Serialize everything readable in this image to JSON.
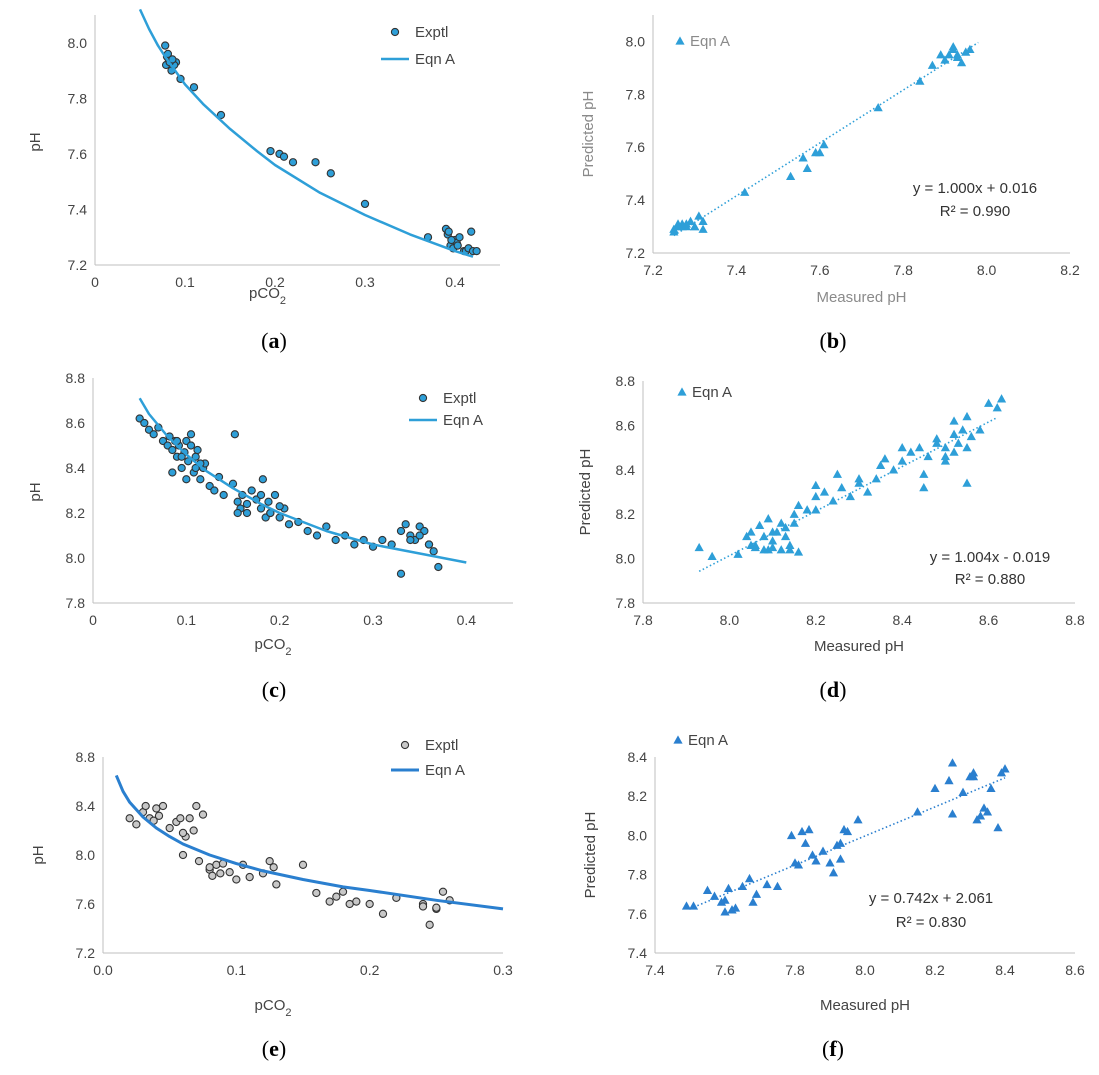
{
  "panel_labels": [
    "(a)",
    "(b)",
    "(c)",
    "(d)",
    "(e)",
    "(f)"
  ],
  "panel_letters": [
    "a",
    "b",
    "c",
    "d",
    "e",
    "f"
  ],
  "colors": {
    "light_blue": "#2e9fd8",
    "mid_blue": "#2a7fcf",
    "gray_point": "#c8c8c8",
    "dark_stroke": "#333333"
  },
  "chart_data": [
    {
      "panel": "a",
      "type": "scatter",
      "xlabel": "pCO2",
      "ylabel": "pH",
      "xlim": [
        0,
        0.45
      ],
      "ylim": [
        7.2,
        8.1
      ],
      "xticks": [
        "0",
        "0.1",
        "0.2",
        "0.3",
        "0.4"
      ],
      "yticks": [
        "7.2",
        "7.4",
        "7.6",
        "7.8",
        "8.0"
      ],
      "legend": [
        "Exptl",
        "Eqn A"
      ],
      "legend_position": "top-right",
      "series": [
        {
          "name": "Exptl",
          "x": [
            0.078,
            0.08,
            0.082,
            0.079,
            0.085,
            0.09,
            0.081,
            0.088,
            0.083,
            0.086,
            0.095,
            0.11,
            0.14,
            0.195,
            0.205,
            0.21,
            0.22,
            0.245,
            0.262,
            0.3,
            0.37,
            0.39,
            0.392,
            0.395,
            0.398,
            0.4,
            0.402,
            0.405,
            0.41,
            0.412,
            0.415,
            0.418,
            0.42,
            0.424,
            0.393,
            0.396,
            0.403
          ],
          "y": [
            7.99,
            7.95,
            7.94,
            7.92,
            7.9,
            7.93,
            7.96,
            7.92,
            7.93,
            7.94,
            7.87,
            7.84,
            7.74,
            7.61,
            7.6,
            7.59,
            7.57,
            7.57,
            7.53,
            7.42,
            7.3,
            7.33,
            7.31,
            7.27,
            7.26,
            7.29,
            7.28,
            7.3,
            7.25,
            7.25,
            7.26,
            7.32,
            7.25,
            7.25,
            7.32,
            7.29,
            7.27
          ]
        },
        {
          "name": "Eqn A",
          "x": [
            0.05,
            0.06,
            0.07,
            0.08,
            0.1,
            0.12,
            0.15,
            0.18,
            0.2,
            0.25,
            0.3,
            0.35,
            0.4,
            0.42
          ],
          "y": [
            8.12,
            8.05,
            7.99,
            7.94,
            7.85,
            7.78,
            7.69,
            7.61,
            7.56,
            7.46,
            7.38,
            7.31,
            7.25,
            7.23
          ]
        }
      ]
    },
    {
      "panel": "b",
      "type": "scatter",
      "xlabel": "Measured pH",
      "ylabel": "Predicted pH",
      "xlim": [
        7.2,
        8.2
      ],
      "ylim": [
        7.2,
        8.1
      ],
      "xticks": [
        "7.2",
        "7.4",
        "7.6",
        "7.8",
        "8.0",
        "8.2"
      ],
      "yticks": [
        "7.2",
        "7.4",
        "7.6",
        "7.8",
        "8.0"
      ],
      "legend": [
        "Eqn A"
      ],
      "legend_position": "top-left",
      "equation": "y = 1.000x + 0.016",
      "r_squared": "R² = 0.990",
      "trendline": {
        "slope": 1.0,
        "intercept": 0.016,
        "x_range": [
          7.25,
          7.98
        ]
      },
      "series": [
        {
          "name": "Eqn A",
          "x": [
            7.25,
            7.26,
            7.27,
            7.28,
            7.29,
            7.3,
            7.31,
            7.32,
            7.25,
            7.27,
            7.3,
            7.28,
            7.26,
            7.32,
            7.42,
            7.53,
            7.56,
            7.57,
            7.59,
            7.6,
            7.61,
            7.74,
            7.84,
            7.87,
            7.89,
            7.9,
            7.92,
            7.93,
            7.94,
            7.95,
            7.96,
            7.91,
            7.93,
            7.92
          ],
          "y": [
            7.28,
            7.3,
            7.31,
            7.3,
            7.32,
            7.3,
            7.34,
            7.29,
            7.29,
            7.3,
            7.3,
            7.31,
            7.31,
            7.32,
            7.43,
            7.49,
            7.56,
            7.52,
            7.58,
            7.58,
            7.61,
            7.75,
            7.85,
            7.91,
            7.95,
            7.93,
            7.97,
            7.95,
            7.92,
            7.96,
            7.97,
            7.95,
            7.94,
            7.98
          ]
        }
      ]
    },
    {
      "panel": "c",
      "type": "scatter",
      "xlabel": "pCO2",
      "ylabel": "pH",
      "xlim": [
        0,
        0.45
      ],
      "ylim": [
        7.8,
        8.8
      ],
      "xticks": [
        "0",
        "0.1",
        "0.2",
        "0.3",
        "0.4"
      ],
      "yticks": [
        "7.8",
        "8.0",
        "8.2",
        "8.4",
        "8.6",
        "8.8"
      ],
      "legend": [
        "Exptl",
        "Eqn A"
      ],
      "legend_position": "top-right",
      "series": [
        {
          "name": "Exptl",
          "x": [
            0.05,
            0.055,
            0.06,
            0.065,
            0.07,
            0.075,
            0.08,
            0.082,
            0.085,
            0.088,
            0.09,
            0.092,
            0.095,
            0.098,
            0.1,
            0.102,
            0.105,
            0.108,
            0.11,
            0.112,
            0.115,
            0.118,
            0.12,
            0.125,
            0.13,
            0.135,
            0.14,
            0.15,
            0.152,
            0.155,
            0.158,
            0.16,
            0.165,
            0.17,
            0.175,
            0.18,
            0.182,
            0.185,
            0.188,
            0.19,
            0.195,
            0.2,
            0.205,
            0.21,
            0.22,
            0.23,
            0.24,
            0.25,
            0.26,
            0.27,
            0.28,
            0.29,
            0.3,
            0.31,
            0.32,
            0.33,
            0.335,
            0.34,
            0.345,
            0.35,
            0.355,
            0.36,
            0.365,
            0.37,
            0.33,
            0.34,
            0.35,
            0.36,
            0.085,
            0.095,
            0.105,
            0.115,
            0.1,
            0.09,
            0.11,
            0.18,
            0.19,
            0.2,
            0.155,
            0.165
          ],
          "y": [
            8.62,
            8.6,
            8.57,
            8.55,
            8.58,
            8.52,
            8.5,
            8.54,
            8.48,
            8.52,
            8.45,
            8.5,
            8.4,
            8.47,
            8.52,
            8.43,
            8.5,
            8.38,
            8.45,
            8.48,
            8.35,
            8.4,
            8.42,
            8.32,
            8.3,
            8.36,
            8.28,
            8.33,
            8.55,
            8.25,
            8.22,
            8.28,
            8.2,
            8.3,
            8.26,
            8.22,
            8.35,
            8.18,
            8.25,
            8.2,
            8.28,
            8.18,
            8.22,
            8.15,
            8.16,
            8.12,
            8.1,
            8.14,
            8.08,
            8.1,
            8.06,
            8.08,
            8.05,
            8.08,
            8.06,
            8.12,
            8.15,
            8.1,
            8.08,
            8.14,
            8.12,
            8.06,
            8.03,
            7.96,
            7.93,
            8.08,
            8.1,
            8.06,
            8.38,
            8.45,
            8.55,
            8.42,
            8.35,
            8.52,
            8.4,
            8.28,
            8.2,
            8.23,
            8.2,
            8.24
          ]
        },
        {
          "name": "Eqn A",
          "x": [
            0.05,
            0.06,
            0.08,
            0.1,
            0.12,
            0.15,
            0.18,
            0.2,
            0.25,
            0.3,
            0.35,
            0.4
          ],
          "y": [
            8.71,
            8.64,
            8.54,
            8.46,
            8.39,
            8.31,
            8.24,
            8.2,
            8.12,
            8.06,
            8.02,
            7.98
          ]
        }
      ]
    },
    {
      "panel": "d",
      "type": "scatter",
      "xlabel": "Measured pH",
      "ylabel": "Predicted pH",
      "xlim": [
        7.8,
        8.8
      ],
      "ylim": [
        7.8,
        8.8
      ],
      "xticks": [
        "7.8",
        "8.0",
        "8.2",
        "8.4",
        "8.6",
        "8.8"
      ],
      "yticks": [
        "7.8",
        "8.0",
        "8.2",
        "8.4",
        "8.6",
        "8.8"
      ],
      "legend": [
        "Eqn A"
      ],
      "legend_position": "top-left",
      "equation": "y = 1.004x - 0.019",
      "r_squared": "R² = 0.880",
      "trendline": {
        "slope": 1.004,
        "intercept": -0.019,
        "x_range": [
          7.93,
          8.62
        ]
      },
      "series": [
        {
          "name": "Eqn A",
          "x": [
            7.93,
            7.96,
            8.02,
            8.04,
            8.05,
            8.06,
            8.07,
            8.08,
            8.09,
            8.1,
            8.11,
            8.12,
            8.13,
            8.14,
            8.15,
            8.16,
            8.05,
            8.08,
            8.1,
            8.12,
            8.14,
            8.16,
            8.18,
            8.2,
            8.22,
            8.24,
            8.26,
            8.28,
            8.3,
            8.32,
            8.34,
            8.36,
            8.38,
            8.4,
            8.42,
            8.44,
            8.45,
            8.46,
            8.48,
            8.5,
            8.5,
            8.52,
            8.52,
            8.53,
            8.54,
            8.55,
            8.55,
            8.56,
            8.58,
            8.6,
            8.62,
            8.63,
            8.2,
            8.25,
            8.3,
            8.35,
            8.4,
            8.45,
            8.5,
            8.55,
            8.1,
            8.15,
            8.2,
            8.48,
            8.52,
            8.06,
            8.09,
            8.13
          ],
          "y": [
            8.05,
            8.01,
            8.02,
            8.1,
            8.12,
            8.06,
            8.15,
            8.04,
            8.18,
            8.08,
            8.12,
            8.04,
            8.14,
            8.06,
            8.2,
            8.03,
            8.06,
            8.1,
            8.05,
            8.16,
            8.04,
            8.24,
            8.22,
            8.28,
            8.3,
            8.26,
            8.32,
            8.28,
            8.34,
            8.3,
            8.36,
            8.45,
            8.4,
            8.44,
            8.48,
            8.5,
            8.38,
            8.46,
            8.52,
            8.5,
            8.44,
            8.56,
            8.48,
            8.52,
            8.58,
            8.64,
            8.5,
            8.55,
            8.58,
            8.7,
            8.68,
            8.72,
            8.33,
            8.38,
            8.36,
            8.42,
            8.5,
            8.32,
            8.46,
            8.34,
            8.12,
            8.16,
            8.22,
            8.54,
            8.62,
            8.05,
            8.04,
            8.1
          ]
        }
      ]
    },
    {
      "panel": "e",
      "type": "scatter",
      "xlabel": "pCO2",
      "ylabel": "pH",
      "xlim": [
        0,
        0.3
      ],
      "ylim": [
        7.2,
        8.8
      ],
      "xticks": [
        "0.0",
        "0.1",
        "0.2",
        "0.3"
      ],
      "yticks": [
        "7.2",
        "7.6",
        "8.0",
        "8.4",
        "8.8"
      ],
      "legend": [
        "Exptl",
        "Eqn A"
      ],
      "legend_position": "top-right",
      "series": [
        {
          "name": "Exptl",
          "x": [
            0.02,
            0.025,
            0.03,
            0.032,
            0.035,
            0.038,
            0.04,
            0.042,
            0.045,
            0.05,
            0.055,
            0.058,
            0.06,
            0.062,
            0.065,
            0.068,
            0.07,
            0.072,
            0.075,
            0.08,
            0.082,
            0.085,
            0.088,
            0.09,
            0.095,
            0.1,
            0.105,
            0.11,
            0.12,
            0.125,
            0.128,
            0.13,
            0.15,
            0.16,
            0.17,
            0.175,
            0.18,
            0.185,
            0.19,
            0.2,
            0.21,
            0.22,
            0.24,
            0.245,
            0.25,
            0.255,
            0.26,
            0.24,
            0.25,
            0.06,
            0.08
          ],
          "y": [
            8.3,
            8.25,
            8.35,
            8.4,
            8.3,
            8.28,
            8.38,
            8.32,
            8.4,
            8.22,
            8.27,
            8.3,
            8.0,
            8.15,
            8.3,
            8.2,
            8.4,
            7.95,
            8.33,
            7.88,
            7.83,
            7.92,
            7.85,
            7.93,
            7.86,
            7.8,
            7.92,
            7.82,
            7.85,
            7.95,
            7.9,
            7.76,
            7.92,
            7.69,
            7.62,
            7.66,
            7.7,
            7.6,
            7.62,
            7.6,
            7.52,
            7.65,
            7.6,
            7.43,
            7.56,
            7.7,
            7.63,
            7.58,
            7.57,
            8.18,
            7.9
          ]
        },
        {
          "name": "Eqn A",
          "x": [
            0.01,
            0.015,
            0.02,
            0.03,
            0.04,
            0.05,
            0.06,
            0.08,
            0.1,
            0.12,
            0.15,
            0.18,
            0.2,
            0.25,
            0.3
          ],
          "y": [
            8.65,
            8.52,
            8.43,
            8.31,
            8.22,
            8.15,
            8.09,
            8.0,
            7.93,
            7.87,
            7.8,
            7.74,
            7.71,
            7.63,
            7.56
          ]
        }
      ]
    },
    {
      "panel": "f",
      "type": "scatter",
      "xlabel": "Measured pH",
      "ylabel": "Predicted pH",
      "xlim": [
        7.4,
        8.6
      ],
      "ylim": [
        7.4,
        8.4
      ],
      "xticks": [
        "7.4",
        "7.6",
        "7.8",
        "8.0",
        "8.2",
        "8.4",
        "8.6"
      ],
      "yticks": [
        "7.4",
        "7.6",
        "7.8",
        "8.0",
        "8.2",
        "8.4"
      ],
      "legend": [
        "Eqn A"
      ],
      "legend_position": "top-left",
      "equation": "y = 0.742x + 2.061",
      "r_squared": "R² = 0.830",
      "trendline": {
        "slope": 0.742,
        "intercept": 2.061,
        "x_range": [
          7.5,
          8.4
        ]
      },
      "series": [
        {
          "name": "Eqn A",
          "x": [
            7.49,
            7.51,
            7.55,
            7.57,
            7.59,
            7.6,
            7.61,
            7.62,
            7.63,
            7.65,
            7.67,
            7.68,
            7.69,
            7.72,
            7.75,
            7.79,
            7.8,
            7.82,
            7.83,
            7.84,
            7.85,
            7.86,
            7.88,
            7.9,
            7.91,
            7.92,
            7.93,
            7.94,
            7.95,
            7.98,
            8.15,
            8.2,
            8.25,
            8.25,
            8.28,
            8.3,
            8.31,
            8.32,
            8.33,
            8.34,
            8.35,
            8.36,
            8.38,
            8.39,
            8.4,
            7.6,
            7.62,
            7.81,
            7.93,
            8.31,
            8.24
          ],
          "y": [
            7.64,
            7.64,
            7.72,
            7.69,
            7.66,
            7.61,
            7.73,
            7.62,
            7.63,
            7.74,
            7.78,
            7.66,
            7.7,
            7.75,
            7.74,
            8.0,
            7.86,
            8.02,
            7.96,
            8.03,
            7.9,
            7.87,
            7.92,
            7.86,
            7.81,
            7.95,
            7.88,
            8.03,
            8.02,
            8.08,
            8.12,
            8.24,
            8.37,
            8.11,
            8.22,
            8.3,
            8.32,
            8.08,
            8.1,
            8.14,
            8.12,
            8.24,
            8.04,
            8.32,
            8.34,
            7.67,
            7.62,
            7.85,
            7.96,
            8.3,
            8.28
          ]
        }
      ]
    }
  ]
}
